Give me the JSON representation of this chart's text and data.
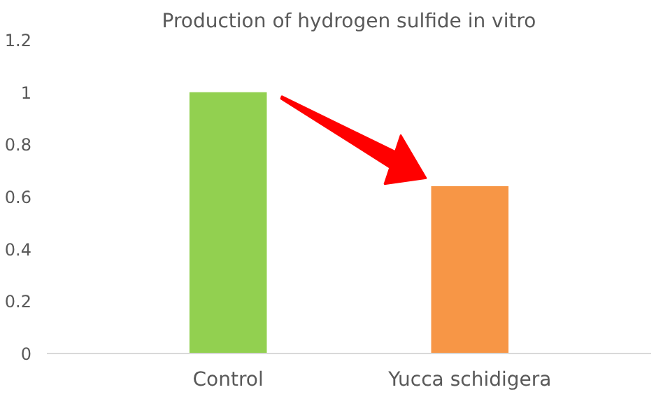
{
  "chart_data": {
    "type": "bar",
    "title": "Production of hydrogen sulfide in vitro",
    "categories": [
      "Control",
      "Yucca schidigera"
    ],
    "values": [
      1,
      0.64
    ],
    "colors": [
      "#92d050",
      "#f79646"
    ],
    "ylim": [
      0,
      1.2
    ],
    "yticks": [
      0,
      0.2,
      0.4,
      0.6,
      0.8,
      1,
      1.2
    ],
    "grid": false
  }
}
